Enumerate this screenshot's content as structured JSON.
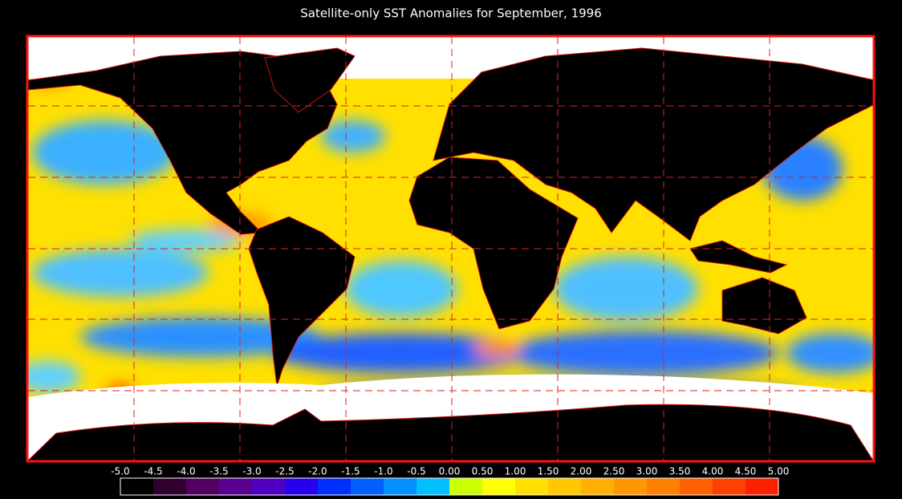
{
  "title": "Satellite-only SST Anomalies for September, 1996",
  "colorbar": {
    "labels": [
      "-5.0",
      "-4.5",
      "-4.0",
      "-3.5",
      "-3.0",
      "-2.5",
      "-2.0",
      "-1.5",
      "-1.0",
      "-0.5",
      "0.00",
      "0.50",
      "1.00",
      "1.50",
      "2.00",
      "2.50",
      "3.00",
      "3.50",
      "4.00",
      "4.50",
      "5.00"
    ],
    "colors": [
      "#000000",
      "#300030",
      "#500060",
      "#5a0090",
      "#5000c0",
      "#2800f0",
      "#0030ff",
      "#0060ff",
      "#0090ff",
      "#00c0ff",
      "#ccff00",
      "#ffff00",
      "#ffe000",
      "#ffc800",
      "#ffb000",
      "#ff9800",
      "#ff8000",
      "#ff6000",
      "#ff4000",
      "#ff2000"
    ]
  }
}
